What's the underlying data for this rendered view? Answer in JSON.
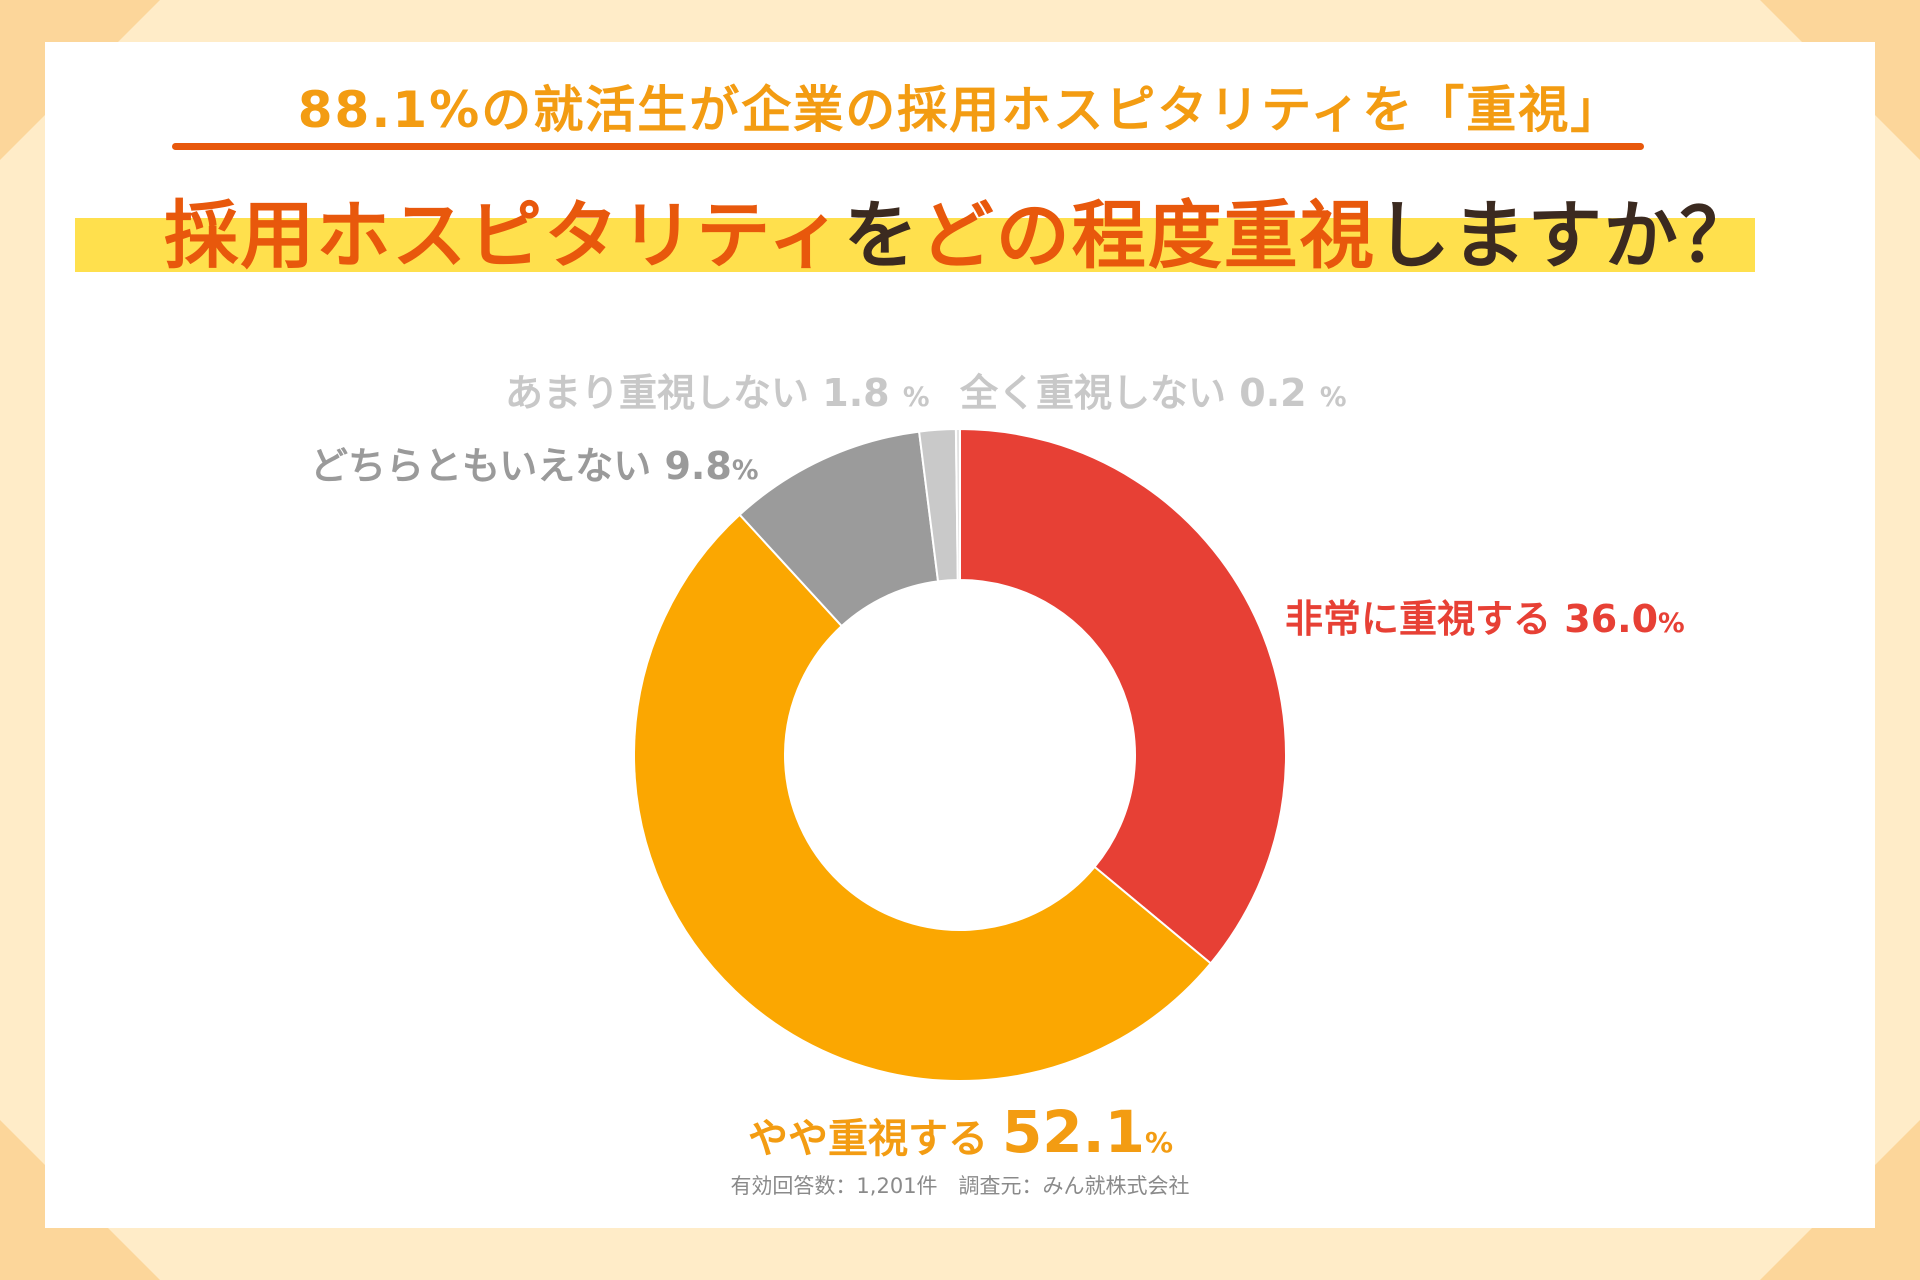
{
  "headline": "88.1%の就活生が企業の採用ホスピタリティを「重視」",
  "question": {
    "part1": "採用ホスピタリティ",
    "part2": "を",
    "part3": "どの程度重視",
    "part4": "しますか？"
  },
  "chart_data": {
    "type": "pie",
    "donut": true,
    "start": "top",
    "direction": "clockwise",
    "series": [
      {
        "label": "非常に重視する",
        "value": 36.0,
        "value_text": "36.0",
        "color": "#e74035"
      },
      {
        "label": "やや重視する",
        "value": 52.1,
        "value_text": "52.1",
        "color": "#fba701"
      },
      {
        "label": "どちらともいえない",
        "value": 9.8,
        "value_text": "9.8",
        "color": "#9b9b9b"
      },
      {
        "label": "あまり重視しない",
        "value": 1.8,
        "value_text": "1.8",
        "color": "#c9c9c9"
      },
      {
        "label": "全く重視しない",
        "value": 0.2,
        "value_text": "0.2",
        "color": "#e2e2e2"
      }
    ],
    "unit": "%"
  },
  "footnote": "有効回答数：1,201件　調査元：みん就株式会社"
}
